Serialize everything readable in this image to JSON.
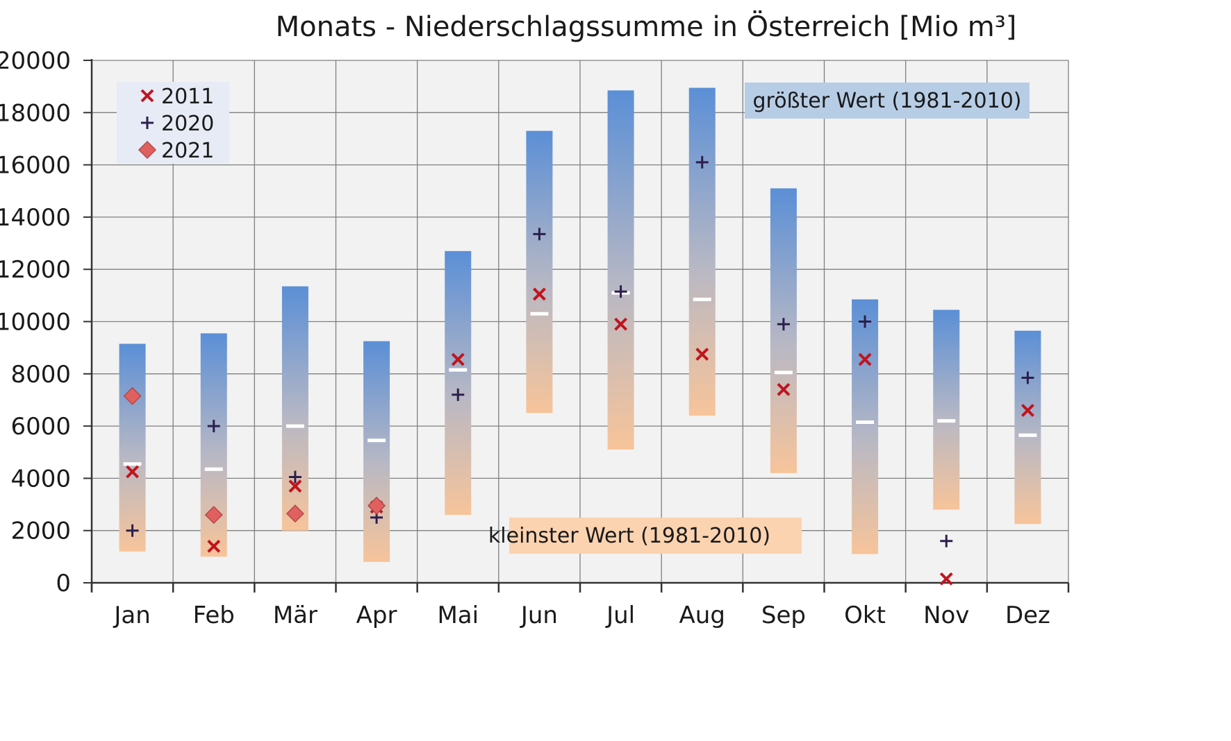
{
  "chart_data": {
    "type": "range-bar",
    "title": "Monats - Niederschlagssumme in Österreich [Mio m³]",
    "categories": [
      "Jan",
      "Feb",
      "Mär",
      "Apr",
      "Mai",
      "Jun",
      "Jul",
      "Aug",
      "Sep",
      "Okt",
      "Nov",
      "Dez"
    ],
    "ylim": [
      0,
      20000
    ],
    "yticks": [
      0,
      2000,
      4000,
      6000,
      8000,
      10000,
      12000,
      14000,
      16000,
      18000,
      20000
    ],
    "grid": true,
    "legend_position": "top-left",
    "range_min": [
      1200,
      1000,
      2000,
      800,
      2600,
      6500,
      5100,
      6400,
      4200,
      1100,
      2800,
      2250
    ],
    "range_max": [
      9150,
      9550,
      11350,
      9250,
      12700,
      17300,
      18850,
      18950,
      15100,
      10850,
      10450,
      9650
    ],
    "mean": [
      4550,
      4350,
      6000,
      5450,
      8150,
      10300,
      11100,
      10850,
      8050,
      6150,
      6200,
      5650
    ],
    "series": [
      {
        "name": "2011",
        "marker": "x",
        "color": "#c0141e",
        "values": [
          4250,
          1400,
          3700,
          2900,
          8550,
          11050,
          9900,
          8750,
          7400,
          8550,
          150,
          6600
        ]
      },
      {
        "name": "2020",
        "marker": "plus",
        "color": "#2c1f4d",
        "values": [
          2000,
          6000,
          4050,
          2500,
          7200,
          13350,
          11150,
          16100,
          9900,
          10000,
          1600,
          7850
        ]
      },
      {
        "name": "2021",
        "marker": "diamond",
        "color": "#e06060",
        "values": [
          7150,
          2600,
          2650,
          2950,
          null,
          null,
          null,
          null,
          null,
          null,
          null,
          null
        ]
      }
    ],
    "annotations": {
      "max_label": "größter Wert (1981-2010)",
      "min_label": "kleinster Wert (1981-2010)"
    },
    "colors": {
      "range_top": "#5b8fd6",
      "range_bottom": "#f7c49a",
      "annotation_max_bg": "#b7cde6",
      "annotation_min_bg": "#fbd3b0",
      "legend_bg": "#e6ebf5",
      "plot_bg": "#f2f2f2",
      "grid": "#7f7f7f"
    }
  }
}
